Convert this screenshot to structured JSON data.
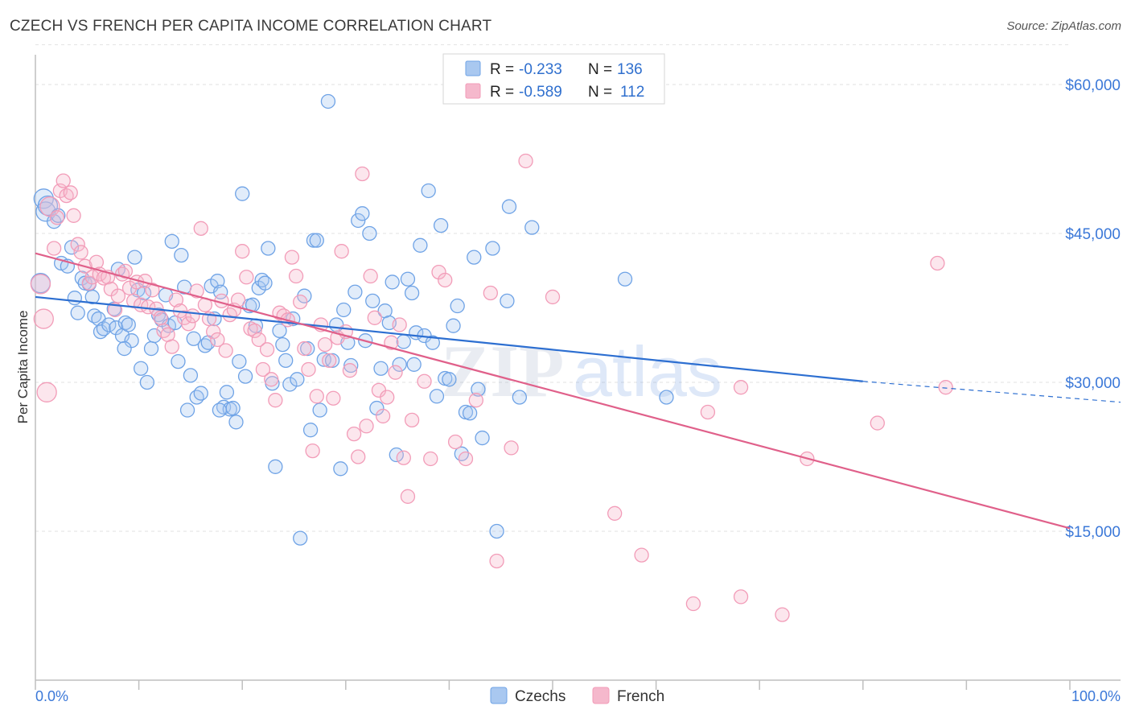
{
  "title": "CZECH VS FRENCH PER CAPITA INCOME CORRELATION CHART",
  "source": "Source: ZipAtlas.com",
  "stats_box": {
    "r_label": "R =",
    "n_label": "N =",
    "rows": [
      {
        "series": "Czechs",
        "r": "-0.233",
        "n": "136",
        "color": "#a9c8f0"
      },
      {
        "series": "French",
        "r": "-0.589",
        "n": "112",
        "color": "#f5b8cc"
      }
    ]
  },
  "legend": [
    {
      "label": "Czechs",
      "color": "#a9c8f0"
    },
    {
      "label": "French",
      "color": "#f5b8cc"
    }
  ],
  "watermark": {
    "zip": "ZIP",
    "atlas": "atlas"
  },
  "chart_data": {
    "type": "scatter",
    "title": "CZECH VS FRENCH PER CAPITA INCOME CORRELATION CHART",
    "xlabel": "",
    "ylabel": "Per Capita Income",
    "xlim": [
      0,
      100
    ],
    "ylim": [
      0,
      63000
    ],
    "x_ticks": [
      "0.0%",
      "100.0%"
    ],
    "y_ticks": [
      {
        "value": 15000,
        "label": "$15,000"
      },
      {
        "value": 30000,
        "label": "$30,000"
      },
      {
        "value": 45000,
        "label": "$45,000"
      },
      {
        "value": 60000,
        "label": "$60,000"
      }
    ],
    "grid": true,
    "legend_position": "bottom-center",
    "series": [
      {
        "name": "Czechs",
        "color": "#6fa3e6",
        "trend": {
          "x0": 0,
          "y0": 38600,
          "x1": 80,
          "y1": 30100,
          "dashed_to_x": 100,
          "dashed_to_y": 28000,
          "color": "#2d6fd1"
        },
        "points": [
          [
            0.5,
            40000
          ],
          [
            0.8,
            48500
          ],
          [
            1,
            47200
          ],
          [
            1.2,
            47800
          ],
          [
            1.8,
            46200
          ],
          [
            2.2,
            46800
          ],
          [
            2.5,
            42000
          ],
          [
            3.1,
            41700
          ],
          [
            3.5,
            43600
          ],
          [
            3.8,
            38500
          ],
          [
            4.1,
            37000
          ],
          [
            4.5,
            40500
          ],
          [
            4.8,
            40000
          ],
          [
            5.2,
            39900
          ],
          [
            5.5,
            38600
          ],
          [
            5.7,
            36700
          ],
          [
            6.1,
            36400
          ],
          [
            6.3,
            35100
          ],
          [
            6.6,
            35400
          ],
          [
            7.1,
            35800
          ],
          [
            7.6,
            37400
          ],
          [
            7.8,
            35500
          ],
          [
            8.0,
            41400
          ],
          [
            8.4,
            34700
          ],
          [
            8.7,
            36000
          ],
          [
            9.0,
            35800
          ],
          [
            9.3,
            34200
          ],
          [
            9.6,
            42600
          ],
          [
            9.9,
            39300
          ],
          [
            10.2,
            31400
          ],
          [
            10.5,
            39000
          ],
          [
            10.8,
            30000
          ],
          [
            11.2,
            33400
          ],
          [
            11.5,
            34700
          ],
          [
            11.9,
            36800
          ],
          [
            12.2,
            36300
          ],
          [
            12.6,
            38800
          ],
          [
            12.9,
            35700
          ],
          [
            13.2,
            44200
          ],
          [
            13.5,
            36000
          ],
          [
            13.8,
            32100
          ],
          [
            14.1,
            42800
          ],
          [
            14.4,
            39600
          ],
          [
            14.7,
            27200
          ],
          [
            15.0,
            30700
          ],
          [
            15.3,
            34400
          ],
          [
            15.6,
            28500
          ],
          [
            16.0,
            28900
          ],
          [
            16.4,
            33700
          ],
          [
            16.7,
            34000
          ],
          [
            17.0,
            39700
          ],
          [
            17.3,
            36400
          ],
          [
            17.6,
            40200
          ],
          [
            17.9,
            39100
          ],
          [
            18.2,
            27500
          ],
          [
            18.5,
            29000
          ],
          [
            18.8,
            27300
          ],
          [
            19.1,
            27400
          ],
          [
            19.4,
            26000
          ],
          [
            19.7,
            32100
          ],
          [
            20.0,
            49000
          ],
          [
            20.3,
            30600
          ],
          [
            20.7,
            37700
          ],
          [
            21.0,
            37800
          ],
          [
            21.3,
            35700
          ],
          [
            21.6,
            39500
          ],
          [
            21.9,
            40300
          ],
          [
            22.2,
            40000
          ],
          [
            22.5,
            43500
          ],
          [
            22.9,
            29900
          ],
          [
            23.2,
            21500
          ],
          [
            23.6,
            35200
          ],
          [
            23.9,
            33800
          ],
          [
            24.2,
            32200
          ],
          [
            24.6,
            29800
          ],
          [
            24.9,
            36400
          ],
          [
            25.3,
            30300
          ],
          [
            25.6,
            14300
          ],
          [
            26.0,
            38700
          ],
          [
            26.3,
            33400
          ],
          [
            26.6,
            25200
          ],
          [
            26.9,
            44300
          ],
          [
            27.2,
            44300
          ],
          [
            27.5,
            27200
          ],
          [
            27.9,
            32300
          ],
          [
            28.3,
            58300
          ],
          [
            28.7,
            32200
          ],
          [
            29.1,
            35800
          ],
          [
            29.5,
            21300
          ],
          [
            29.8,
            37300
          ],
          [
            30.2,
            34000
          ],
          [
            30.5,
            31700
          ],
          [
            30.9,
            39100
          ],
          [
            31.2,
            46300
          ],
          [
            31.6,
            47000
          ],
          [
            31.9,
            34200
          ],
          [
            32.3,
            45000
          ],
          [
            32.6,
            38200
          ],
          [
            33.0,
            27400
          ],
          [
            33.4,
            31400
          ],
          [
            33.8,
            37200
          ],
          [
            34.2,
            36000
          ],
          [
            34.5,
            40100
          ],
          [
            34.9,
            22700
          ],
          [
            35.2,
            31800
          ],
          [
            35.6,
            34100
          ],
          [
            36.0,
            40400
          ],
          [
            36.4,
            39000
          ],
          [
            36.8,
            35000
          ],
          [
            37.2,
            43800
          ],
          [
            37.6,
            34700
          ],
          [
            38.0,
            49300
          ],
          [
            38.4,
            34000
          ],
          [
            38.8,
            28600
          ],
          [
            39.2,
            45800
          ],
          [
            39.6,
            30400
          ],
          [
            40.0,
            30300
          ],
          [
            40.4,
            35700
          ],
          [
            40.8,
            37700
          ],
          [
            41.2,
            22800
          ],
          [
            41.6,
            27000
          ],
          [
            42.0,
            26900
          ],
          [
            42.4,
            42600
          ],
          [
            42.8,
            29300
          ],
          [
            43.2,
            24400
          ],
          [
            44.2,
            43500
          ],
          [
            44.6,
            15000
          ],
          [
            45.6,
            38200
          ],
          [
            45.8,
            47700
          ],
          [
            46.8,
            28500
          ],
          [
            48.0,
            45600
          ],
          [
            57.0,
            40400
          ],
          [
            61.0,
            28500
          ],
          [
            36.6,
            31800
          ],
          [
            17.8,
            27200
          ],
          [
            8.6,
            33400
          ]
        ]
      },
      {
        "name": "French",
        "color": "#f29cb8",
        "trend": {
          "x0": 0,
          "y0": 43000,
          "x1": 100,
          "y1": 15300,
          "color": "#e0608a"
        },
        "points": [
          [
            0.5,
            39900
          ],
          [
            0.8,
            36400
          ],
          [
            1.1,
            29000
          ],
          [
            1.4,
            47700
          ],
          [
            1.8,
            43500
          ],
          [
            2.1,
            46600
          ],
          [
            2.4,
            49300
          ],
          [
            2.7,
            50300
          ],
          [
            3.0,
            48800
          ],
          [
            3.4,
            49100
          ],
          [
            3.7,
            46800
          ],
          [
            4.1,
            43900
          ],
          [
            4.4,
            43100
          ],
          [
            4.8,
            41700
          ],
          [
            5.2,
            40000
          ],
          [
            5.5,
            40600
          ],
          [
            5.9,
            42100
          ],
          [
            6.2,
            40900
          ],
          [
            6.6,
            40500
          ],
          [
            7.0,
            40600
          ],
          [
            7.3,
            39400
          ],
          [
            7.7,
            37300
          ],
          [
            8.0,
            38700
          ],
          [
            8.4,
            40900
          ],
          [
            8.7,
            41200
          ],
          [
            9.1,
            39500
          ],
          [
            9.5,
            38200
          ],
          [
            9.8,
            40100
          ],
          [
            10.2,
            37800
          ],
          [
            10.6,
            40200
          ],
          [
            10.9,
            37600
          ],
          [
            11.3,
            39300
          ],
          [
            11.7,
            37400
          ],
          [
            12.1,
            36500
          ],
          [
            12.4,
            35200
          ],
          [
            12.8,
            34800
          ],
          [
            13.2,
            33600
          ],
          [
            13.6,
            38300
          ],
          [
            14.0,
            37200
          ],
          [
            14.4,
            36500
          ],
          [
            14.8,
            35900
          ],
          [
            15.2,
            36700
          ],
          [
            15.6,
            39200
          ],
          [
            16.0,
            45500
          ],
          [
            16.4,
            37800
          ],
          [
            16.8,
            36400
          ],
          [
            17.2,
            35100
          ],
          [
            17.6,
            34300
          ],
          [
            18.0,
            38200
          ],
          [
            18.4,
            33200
          ],
          [
            18.8,
            36800
          ],
          [
            19.2,
            37300
          ],
          [
            19.6,
            38300
          ],
          [
            20.0,
            43200
          ],
          [
            20.4,
            40600
          ],
          [
            20.8,
            35400
          ],
          [
            21.2,
            35200
          ],
          [
            21.6,
            34300
          ],
          [
            22.0,
            31300
          ],
          [
            22.4,
            33300
          ],
          [
            22.8,
            30300
          ],
          [
            23.2,
            28200
          ],
          [
            23.6,
            37000
          ],
          [
            24.0,
            36700
          ],
          [
            24.4,
            36300
          ],
          [
            24.8,
            42600
          ],
          [
            25.2,
            40700
          ],
          [
            25.6,
            38100
          ],
          [
            26.0,
            33400
          ],
          [
            26.4,
            31300
          ],
          [
            26.8,
            23100
          ],
          [
            27.2,
            28600
          ],
          [
            27.6,
            35800
          ],
          [
            28.0,
            33800
          ],
          [
            28.4,
            32200
          ],
          [
            28.8,
            28400
          ],
          [
            29.2,
            34500
          ],
          [
            29.6,
            43200
          ],
          [
            30.0,
            35100
          ],
          [
            30.4,
            31200
          ],
          [
            30.8,
            24800
          ],
          [
            31.2,
            22500
          ],
          [
            31.6,
            51000
          ],
          [
            32.0,
            25600
          ],
          [
            32.4,
            40700
          ],
          [
            32.8,
            36500
          ],
          [
            33.2,
            29200
          ],
          [
            33.6,
            26600
          ],
          [
            34.0,
            28500
          ],
          [
            34.4,
            34000
          ],
          [
            34.8,
            31000
          ],
          [
            35.2,
            35800
          ],
          [
            35.6,
            22400
          ],
          [
            36.0,
            18500
          ],
          [
            36.4,
            26200
          ],
          [
            37.6,
            30100
          ],
          [
            38.2,
            22300
          ],
          [
            39.0,
            41100
          ],
          [
            39.6,
            40300
          ],
          [
            40.6,
            24000
          ],
          [
            41.6,
            22300
          ],
          [
            42.6,
            28200
          ],
          [
            44.0,
            39000
          ],
          [
            44.6,
            12000
          ],
          [
            46.0,
            23400
          ],
          [
            47.4,
            52300
          ],
          [
            50.0,
            38600
          ],
          [
            56.0,
            16800
          ],
          [
            58.6,
            12600
          ],
          [
            63.6,
            7700
          ],
          [
            65.0,
            27000
          ],
          [
            68.2,
            8400
          ],
          [
            72.2,
            6600
          ],
          [
            74.6,
            22300
          ],
          [
            81.4,
            25900
          ],
          [
            87.2,
            42000
          ],
          [
            88.0,
            29500
          ],
          [
            68.2,
            29500
          ]
        ]
      }
    ]
  }
}
